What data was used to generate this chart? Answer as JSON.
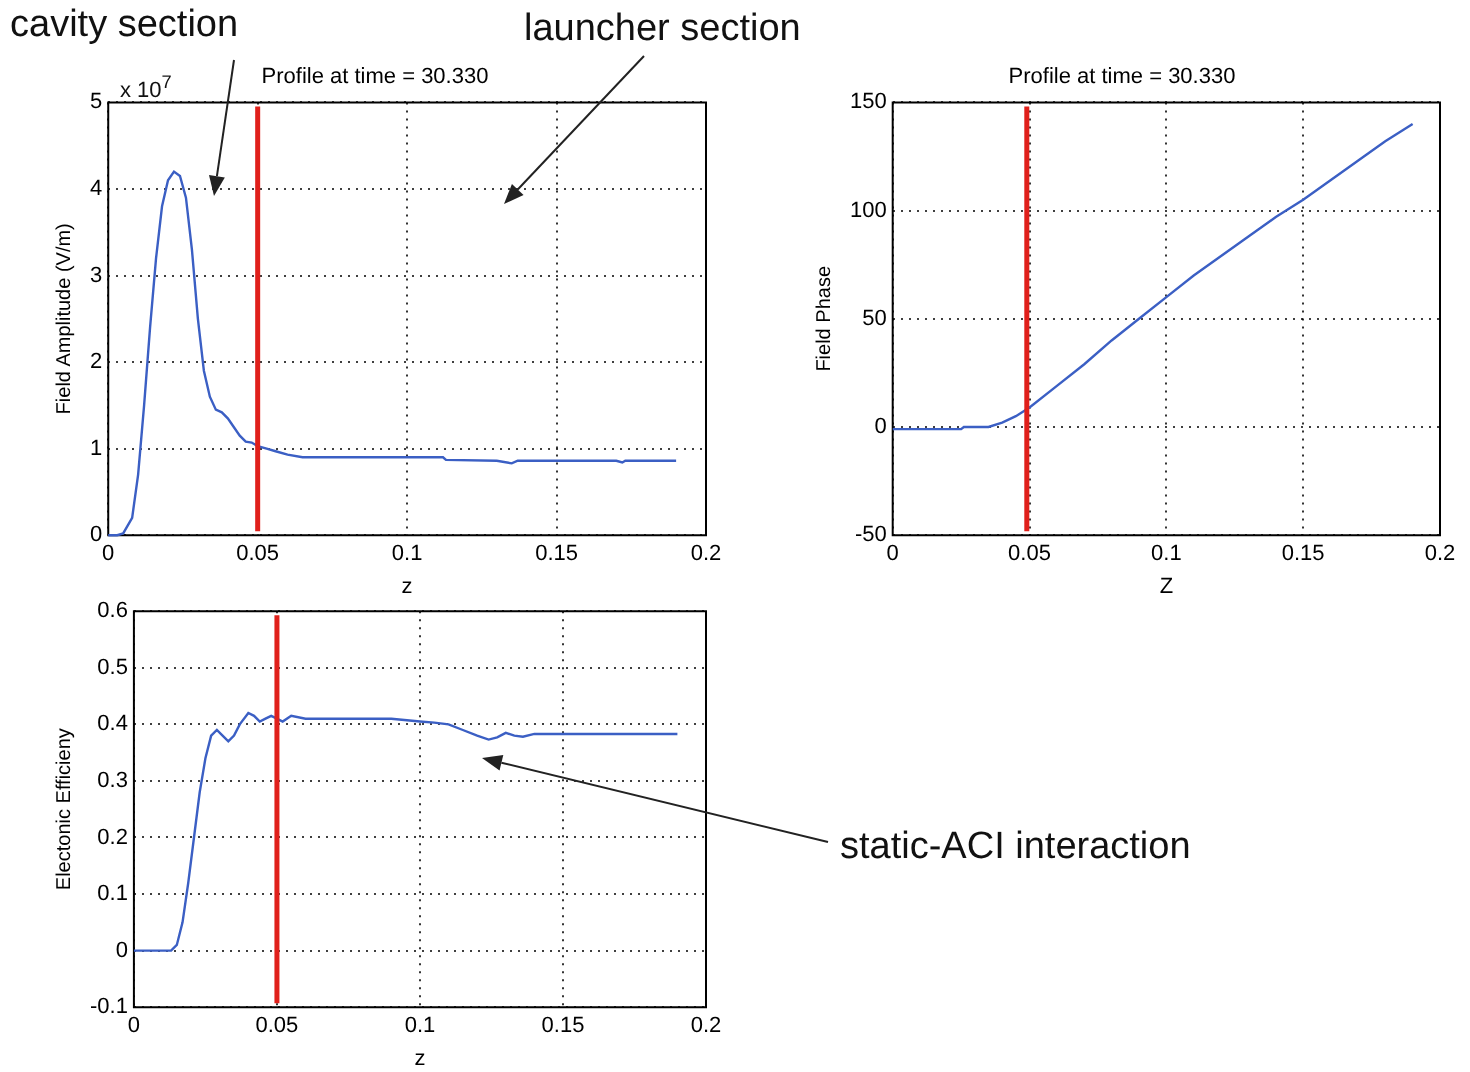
{
  "chart_data": [
    {
      "type": "line",
      "title": "Profile at time = 30.330",
      "xlabel": "z",
      "ylabel": "Field Amplitude (V/m)",
      "annotations": [
        "cavity section",
        "launcher section",
        "x 10$^{7}$"
      ],
      "series": [
        {
          "color": "#3b5fc4",
          "x": [
            0,
            0.003,
            0.005,
            0.008,
            0.01,
            0.012,
            0.014,
            0.016,
            0.018,
            0.02,
            0.022,
            0.024,
            0.026,
            0.028,
            0.03,
            0.032,
            0.034,
            0.036,
            0.038,
            0.04,
            0.042,
            0.044,
            0.046,
            0.048,
            0.05,
            0.053,
            0.056,
            0.06,
            0.065,
            0.07,
            0.08,
            0.1,
            0.112,
            0.113,
            0.13,
            0.135,
            0.137,
            0.15,
            0.17,
            0.172,
            0.173,
            0.19
          ],
          "values": [
            0,
            0,
            0.02,
            0.2,
            0.7,
            1.5,
            2.4,
            3.2,
            3.8,
            4.1,
            4.2,
            4.15,
            3.9,
            3.3,
            2.5,
            1.9,
            1.6,
            1.45,
            1.42,
            1.35,
            1.25,
            1.15,
            1.08,
            1.07,
            1.03,
            1.0,
            0.97,
            0.93,
            0.9,
            0.9,
            0.9,
            0.9,
            0.9,
            0.87,
            0.86,
            0.83,
            0.86,
            0.86,
            0.86,
            0.84,
            0.86,
            0.86
          ]
        }
      ],
      "xlim": [
        0,
        0.2
      ],
      "xticks": [
        0,
        0.05,
        0.1,
        0.15,
        0.2
      ],
      "ylim": [
        0,
        5
      ],
      "yticks": [
        0,
        1,
        2,
        3,
        4,
        5
      ],
      "grid": true,
      "legend": false,
      "ref_lines": [
        {
          "axis": "x",
          "value": 0.05,
          "color": "#e0201b"
        }
      ]
    },
    {
      "type": "line",
      "title": "Profile at time = 30.330",
      "xlabel": "Z",
      "ylabel": "Field Phase",
      "series": [
        {
          "color": "#3b5fc4",
          "x": [
            0,
            0.025,
            0.026,
            0.035,
            0.04,
            0.045,
            0.05,
            0.06,
            0.07,
            0.08,
            0.09,
            0.1,
            0.11,
            0.12,
            0.13,
            0.14,
            0.15,
            0.16,
            0.17,
            0.18,
            0.19
          ],
          "values": [
            -1,
            -1,
            0,
            0,
            2,
            5,
            9,
            19,
            29,
            40,
            50,
            60,
            70,
            79,
            88,
            97,
            105,
            114,
            123,
            132,
            140
          ]
        }
      ],
      "xlim": [
        0,
        0.2
      ],
      "xticks": [
        0,
        0.05,
        0.1,
        0.15,
        0.2
      ],
      "ylim": [
        -50,
        150
      ],
      "yticks": [
        -50,
        0,
        50,
        100,
        150
      ],
      "grid": true,
      "legend": false,
      "ref_lines": [
        {
          "axis": "x",
          "value": 0.049,
          "color": "#e0201b"
        }
      ]
    },
    {
      "type": "line",
      "xlabel": "z",
      "ylabel": "Electonic Efficieny",
      "annotations": [
        "static-ACI interaction"
      ],
      "series": [
        {
          "color": "#3b5fc4",
          "x": [
            0,
            0.013,
            0.015,
            0.017,
            0.019,
            0.021,
            0.023,
            0.025,
            0.027,
            0.029,
            0.031,
            0.033,
            0.035,
            0.037,
            0.04,
            0.042,
            0.044,
            0.046,
            0.048,
            0.05,
            0.052,
            0.055,
            0.06,
            0.07,
            0.08,
            0.09,
            0.1,
            0.105,
            0.11,
            0.115,
            0.12,
            0.124,
            0.127,
            0.13,
            0.133,
            0.136,
            0.14,
            0.19
          ],
          "values": [
            0,
            0,
            0.01,
            0.05,
            0.12,
            0.2,
            0.28,
            0.34,
            0.38,
            0.39,
            0.38,
            0.37,
            0.38,
            0.4,
            0.42,
            0.415,
            0.405,
            0.41,
            0.415,
            0.41,
            0.405,
            0.415,
            0.41,
            0.41,
            0.41,
            0.41,
            0.405,
            0.403,
            0.4,
            0.39,
            0.38,
            0.373,
            0.377,
            0.385,
            0.38,
            0.378,
            0.383,
            0.383
          ]
        }
      ],
      "xlim": [
        0,
        0.2
      ],
      "xticks": [
        0,
        0.05,
        0.1,
        0.15,
        0.2
      ],
      "ylim": [
        -0.1,
        0.6
      ],
      "yticks": [
        -0.1,
        0,
        0.1,
        0.2,
        0.3,
        0.4,
        0.5,
        0.6
      ],
      "grid": true,
      "legend": false,
      "ref_lines": [
        {
          "axis": "x",
          "value": 0.05,
          "color": "#e0201b"
        }
      ]
    }
  ]
}
